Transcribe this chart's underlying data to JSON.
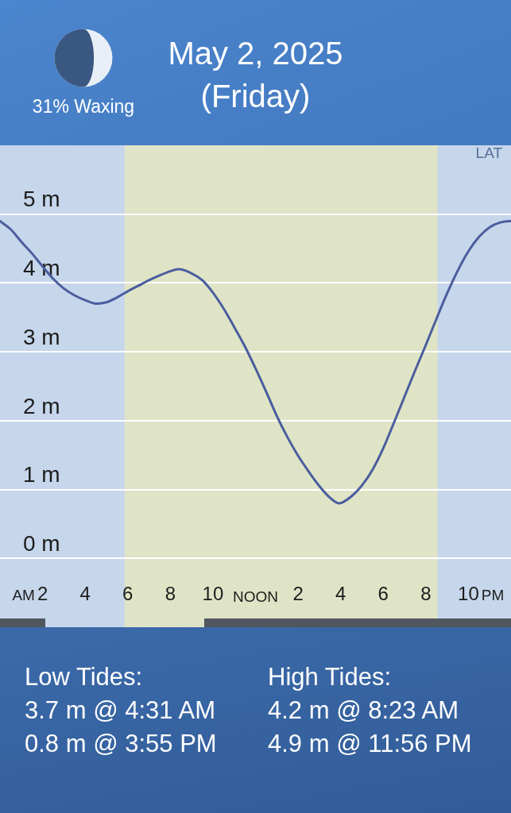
{
  "chart_data": {
    "type": "line",
    "title": "May 2, 2025",
    "subtitle": "(Friday)",
    "annotations": [
      "31% Waxing",
      "LAT",
      "AM",
      "PM",
      "Low Tides:",
      "3.7 m @ 4:31 AM",
      "0.8 m @ 3:55 PM",
      "High Tides:",
      "4.2 m @ 8:23 AM",
      "4.9 m @ 11:56 PM"
    ],
    "x": [
      "2025-05-02T00:00",
      "2025-05-02T00:30",
      "2025-05-02T01:00",
      "2025-05-02T01:30",
      "2025-05-02T02:00",
      "2025-05-02T02:30",
      "2025-05-02T03:00",
      "2025-05-02T03:30",
      "2025-05-02T04:00",
      "2025-05-02T04:31",
      "2025-05-02T05:00",
      "2025-05-02T05:30",
      "2025-05-02T06:00",
      "2025-05-02T06:30",
      "2025-05-02T07:00",
      "2025-05-02T07:30",
      "2025-05-02T08:00",
      "2025-05-02T08:23",
      "2025-05-02T09:00",
      "2025-05-02T09:30",
      "2025-05-02T10:00",
      "2025-05-02T10:30",
      "2025-05-02T11:00",
      "2025-05-02T11:30",
      "2025-05-02T12:00",
      "2025-05-02T12:30",
      "2025-05-02T13:00",
      "2025-05-02T13:30",
      "2025-05-02T14:00",
      "2025-05-02T14:30",
      "2025-05-02T15:00",
      "2025-05-02T15:30",
      "2025-05-02T15:55",
      "2025-05-02T16:30",
      "2025-05-02T17:00",
      "2025-05-02T17:30",
      "2025-05-02T18:00",
      "2025-05-02T18:30",
      "2025-05-02T19:00",
      "2025-05-02T19:30",
      "2025-05-02T20:00",
      "2025-05-02T20:30",
      "2025-05-02T21:00",
      "2025-05-02T21:30",
      "2025-05-02T22:00",
      "2025-05-02T22:30",
      "2025-05-02T23:00",
      "2025-05-02T23:30",
      "2025-05-02T23:56",
      "2025-05-03T00:00"
    ],
    "series": [
      {
        "color": "#4a5d9e",
        "values": [
          4.9,
          4.78,
          4.6,
          4.43,
          4.24,
          4.06,
          3.92,
          3.82,
          3.75,
          3.7,
          3.72,
          3.79,
          3.88,
          3.96,
          4.04,
          4.11,
          4.17,
          4.2,
          4.14,
          4.04,
          3.86,
          3.63,
          3.36,
          3.08,
          2.76,
          2.42,
          2.07,
          1.76,
          1.49,
          1.26,
          1.05,
          0.88,
          0.8,
          0.9,
          1.06,
          1.29,
          1.6,
          1.97,
          2.35,
          2.73,
          3.1,
          3.48,
          3.85,
          4.18,
          4.46,
          4.67,
          4.81,
          4.88,
          4.9,
          4.9
        ]
      }
    ],
    "xlim": [
      "2025-05-02T00:00",
      "2025-05-03T00:00"
    ],
    "xticks": [
      {
        "value": "2025-05-02T02:00",
        "label": "2"
      },
      {
        "value": "2025-05-02T04:00",
        "label": "4"
      },
      {
        "value": "2025-05-02T06:00",
        "label": "6"
      },
      {
        "value": "2025-05-02T08:00",
        "label": "8"
      },
      {
        "value": "2025-05-02T10:00",
        "label": "10"
      },
      {
        "value": "2025-05-02T12:00",
        "label": "NOON"
      },
      {
        "value": "2025-05-02T14:00",
        "label": "2"
      },
      {
        "value": "2025-05-02T16:00",
        "label": "4"
      },
      {
        "value": "2025-05-02T18:00",
        "label": "6"
      },
      {
        "value": "2025-05-02T20:00",
        "label": "8"
      },
      {
        "value": "2025-05-02T22:00",
        "label": "10"
      }
    ],
    "ylim": [
      -1,
      6
    ],
    "yticks": [
      {
        "value": 0,
        "label": "0 m"
      },
      {
        "value": 1,
        "label": "1 m"
      },
      {
        "value": 2,
        "label": "2 m"
      },
      {
        "value": 3,
        "label": "3 m"
      },
      {
        "value": 4,
        "label": "4 m"
      },
      {
        "value": 5,
        "label": "5 m"
      }
    ],
    "bands": [
      {
        "axis": "x",
        "from": "2025-05-02T05:51",
        "to": "2025-05-02T20:33",
        "color": "#dfe4c6"
      }
    ],
    "grid": "y"
  }
}
